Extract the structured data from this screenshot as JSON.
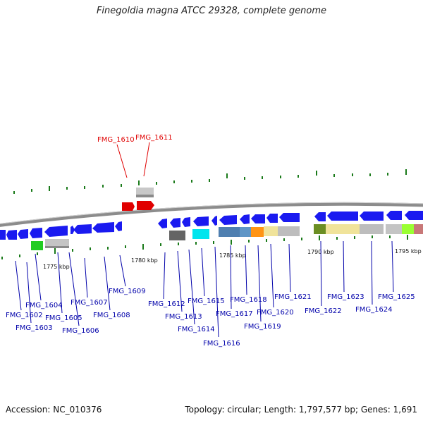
{
  "title": "Finegoldia magna ATCC 29328, complete genome",
  "footer": {
    "accession": "Accession: NC_010376",
    "summary": "Topology: circular; Length: 1,797,577 bp; Genes: 1,691"
  },
  "scale_labels": [
    "1775 kbp",
    "1780 kbp",
    "1785 kbp",
    "1790 kbp",
    "1795 kbp"
  ],
  "highlighted_genes": [
    "FMG_1610",
    "FMG_1611"
  ],
  "gene_labels": [
    "FMG_1602",
    "FMG_1603",
    "FMG_1604",
    "FMG_1605",
    "FMG_1606",
    "FMG_1607",
    "FMG_1608",
    "FMG_1609",
    "FMG_1612",
    "FMG_1613",
    "FMG_1614",
    "FMG_1615",
    "FMG_1616",
    "FMG_1617",
    "FMG_1618",
    "FMG_1619",
    "FMG_1620",
    "FMG_1621",
    "FMG_1622",
    "FMG_1623",
    "FMG_1624",
    "FMG_1625"
  ],
  "colors": {
    "highlight": "#e00000",
    "gene": "#1a1af0",
    "label": "#0000aa",
    "backbone": "#8c8c8c",
    "tick": "#1a7a1a"
  }
}
